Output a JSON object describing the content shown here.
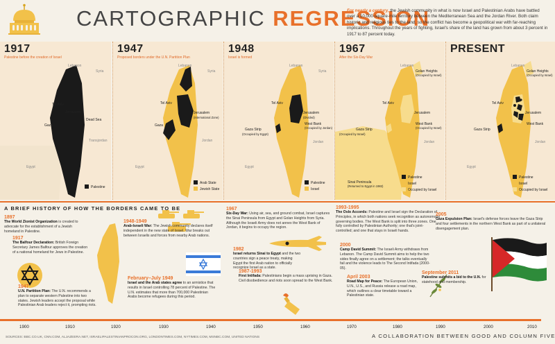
{
  "header": {
    "title_part1": "CARTOGRAPHIC",
    "title_part2": "REGRESSION",
    "intro_lead": "For nearly a century,",
    "intro_body": " the Jewish community in what is now Israel and Palestinian Arabs have battled over a 10,000-square-mile territory between the Mediterranean Sea and the Jordan River. Both claim historic and religious ties to the land, so the conflict has become a geopolitical war with far-reaching implications. Throughout the years of fighting, Israel's share of the land has grown from about 3 percent in 1917 to 87 percent today."
  },
  "maps": [
    {
      "year": "1917",
      "caption": "Palestine before the creation of Israel",
      "legend": [
        "Palestine"
      ]
    },
    {
      "year": "1947",
      "caption": "Proposed borders under the U.N. Partition Plan",
      "legend": [
        "Arab State",
        "Jewish State"
      ]
    },
    {
      "year": "1948",
      "caption": "Israel is formed",
      "legend": [
        "Palestine",
        "Israel"
      ]
    },
    {
      "year": "1967",
      "caption": "After the Six-Day War",
      "legend": [
        "Palestine",
        "Israel",
        "Occupied by Israel"
      ]
    },
    {
      "year": "PRESENT",
      "caption": "",
      "legend": [
        "Palestine",
        "Israel",
        "Occupied by Israel"
      ]
    }
  ],
  "place_labels": {
    "lebanon": "Lebanon",
    "syria": "Syria",
    "tel_aviv": "Tel Aviv",
    "jerusalem": "Jerusalem",
    "gaza": "Gaza",
    "dead_sea": "Dead Sea",
    "transjordan": "Transjordan",
    "egypt": "Egypt",
    "jordan": "Jordan",
    "intl_zone": "(International Zone)",
    "divided": "(Divided)",
    "gaza_strip": "Gaza Strip",
    "occ_egypt": "(Occupied by Egypt)",
    "west_bank": "West Bank",
    "occ_jordan": "(Occupied by Jordan)",
    "golan": "Golan Heights",
    "occ_israel": "(Occupied by Israel)",
    "sinai": "Sinai Peninsula",
    "sinai_note": "(Returned to Egypt in 1982)"
  },
  "history": {
    "title": "A BRIEF HISTORY OF HOW THE BORDERS CAME TO BE",
    "events": [
      {
        "year": "1897",
        "head": "The World Zionist Organization",
        "body": " is created to advocate for the establishment of a Jewish homeland in Palestine."
      },
      {
        "year": "1917",
        "head": "The Balfour Declaration:",
        "body": " British Foreign Secretary James Balfour approves the creation of a national homeland for Jews in Palestine."
      },
      {
        "year": "1947",
        "head": "U.N. Partition Plan:",
        "body": " The U.N. recommends a plan to separate western Palestine into two states. Jewish leaders accept the proposal while Palestinian Arab leaders reject it, prompting riots."
      },
      {
        "year": "1948-1949",
        "head": "Arab-Israeli War:",
        "body": " The Jewish community declares itself independent in the new state of Israel. War breaks out between Israelis and forces from nearby Arab nations."
      },
      {
        "year": "February–July 1949",
        "head": "Israel and the Arab states agree",
        "body": " to an armistice that results in Israel controlling 78 percent of Palestine. The U.N. estimates that more than 700,000 Palestinian Arabs become refugees during this period."
      },
      {
        "year": "1967",
        "head": "Six-Day War:",
        "body": " Using air, sea, and ground combat, Israel captures the Sinai Peninsula from Egypt and Golan Heights from Syria. Although the Israeli Army does not annex the West Bank of Jordan, it begins to occupy the region."
      },
      {
        "year": "1982",
        "head": "Israel returns Sinai to Egypt",
        "body": " and the two countries sign a peace treaty, making Egypt the first Arab nation to officially recognize Israel as a state."
      },
      {
        "year": "1987-1993",
        "head": "First Intifada:",
        "body": " Palestinians begin a mass uprising in Gaza. Civil disobedience and riots soon spread to the West Bank."
      },
      {
        "year": "1993-1995",
        "head": "The Oslo Accords:",
        "body": " Palestine and Israel sign the Declaration of Principles, in which both nations seek recognition as autonomous governing bodies. The West Bank is split into three zones. One fully controlled by Palestinian Authority; one that's joint-controlled; and one that stays in Israeli hands."
      },
      {
        "year": "2000",
        "head": "Camp David Summit:",
        "body": " The Israeli Army withdraws from Lebanon. The Camp David Summit aims to help the two sides finally agree on a settlement; the talks eventually fail and the violence leads to The Second Intifada (2000-05)."
      },
      {
        "year": "April 2003",
        "head": "Road Map for Peace:",
        "body": " The European Union, U.N., U.S., and Russia release a road map, which outlines a clear timetable toward a Palestinian state."
      },
      {
        "year": "2005",
        "head": "Gaza Expulsion Plan:",
        "body": " Israel's defense forces leave the Gaza Strip and four settlements in the northern West Bank as part of a unilateral disengagement plan."
      },
      {
        "year": "September 2011",
        "head": "Palestine submits a bid to the U.N.",
        "body": " for statehood and membership."
      }
    ]
  },
  "timeline_ticks": [
    "1900",
    "1910",
    "1920",
    "1930",
    "1940",
    "1950",
    "1960",
    "1970",
    "1980",
    "1990",
    "2000",
    "2010"
  ],
  "footer": {
    "sources": "SOURCES: BBC.CO.UK, CNN.COM, ALJAZEERA.NET, ISRAELIPALESTINIANPROCON.ORG, LONDONTIMES.COM, NYTIMES.COM, MSNBC.COM, UNITED NATIONS",
    "collab": "A COLLABORATION BETWEEN GOOD AND COLUMN FIVE"
  },
  "colors": {
    "accent": "#e8702a",
    "palestine": "#1a1a1a",
    "israel": "#f2c14a",
    "occupied": "#f7dc8d",
    "background": "#f5f1e8"
  },
  "icons": [
    "dome-of-the-rock-icon",
    "star-of-david-icon",
    "israeli-flag-icon",
    "tanks-icon",
    "fighter-plane-icon",
    "molotov-icon",
    "olive-branch-icon",
    "palestinian-flag-icon"
  ]
}
